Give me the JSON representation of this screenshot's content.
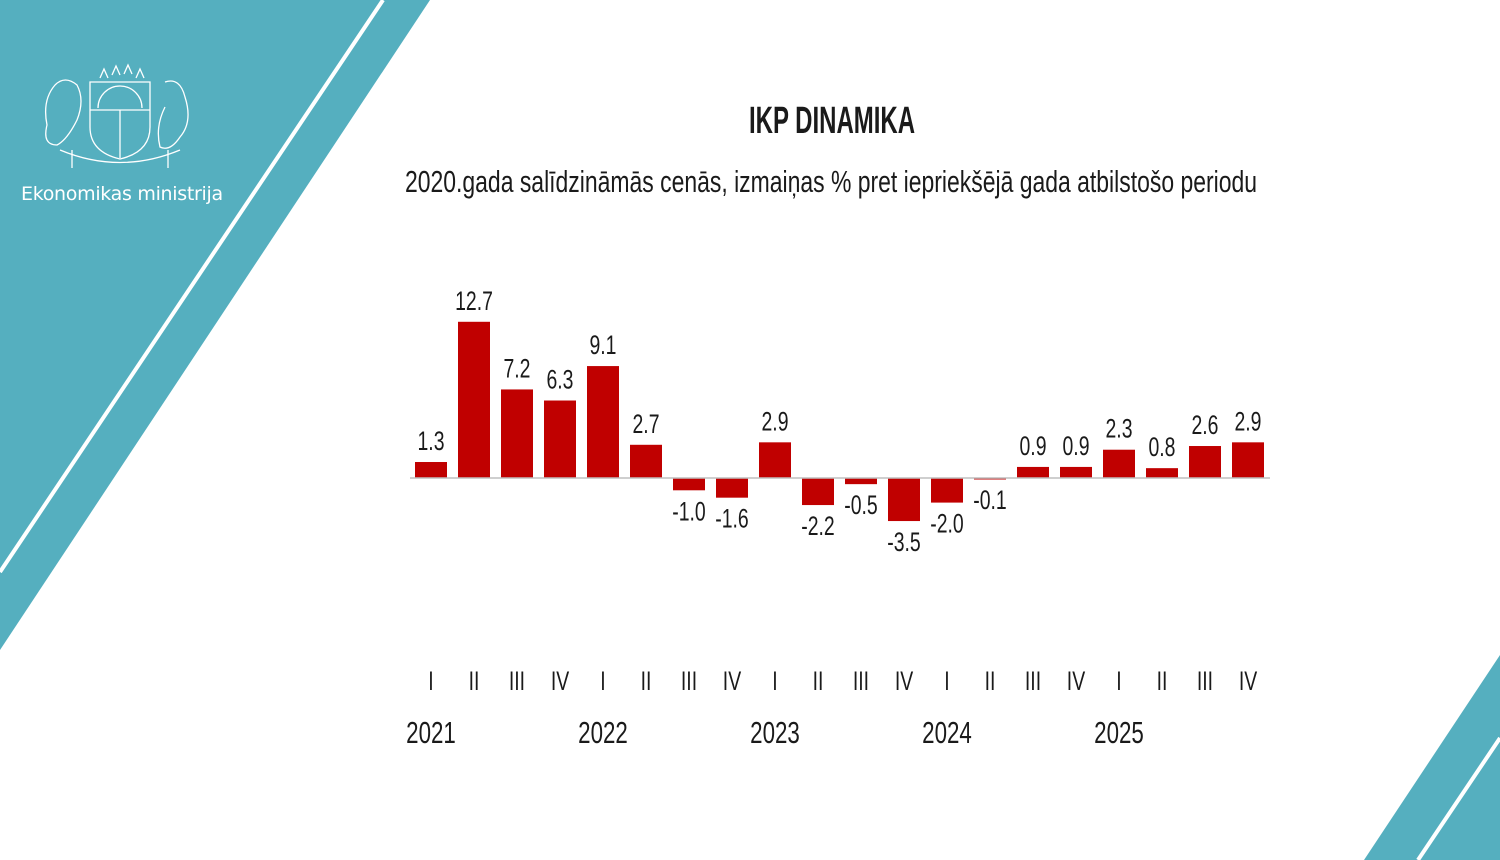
{
  "branding": {
    "organization": "Ekonomikas ministrija",
    "logo": "Latvian coat of arms",
    "accent_color": "#55afbf"
  },
  "chart_data": {
    "type": "bar",
    "title": "IKP DINAMIKA",
    "subtitle": "2020.gada salīdzināmās cenās, izmaiņas % pret iepriekšējā gada atbilstošo periodu",
    "quarters": [
      "I",
      "II",
      "III",
      "IV",
      "I",
      "II",
      "III",
      "IV",
      "I",
      "II",
      "III",
      "IV",
      "I",
      "II",
      "III",
      "IV",
      "I",
      "II",
      "III",
      "IV"
    ],
    "years": [
      "2021",
      "2022",
      "2023",
      "2024",
      "2025"
    ],
    "values": [
      1.3,
      12.7,
      7.2,
      6.3,
      9.1,
      2.7,
      -1.0,
      -1.6,
      2.9,
      -2.2,
      -0.5,
      -3.5,
      -2.0,
      -0.1,
      0.9,
      0.9,
      2.3,
      0.8,
      2.6,
      2.9
    ],
    "labels": [
      "1.3",
      "12.7",
      "7.2",
      "6.3",
      "9.1",
      "2.7",
      "-1.0",
      "-1.6",
      "2.9",
      "-2.2",
      "-0.5",
      "-3.5",
      "-2.0",
      "-0.1",
      "0.9",
      "0.9",
      "2.3",
      "0.8",
      "2.6",
      "2.9"
    ],
    "bar_color": "#c00000",
    "grid": false,
    "legend": "none"
  }
}
